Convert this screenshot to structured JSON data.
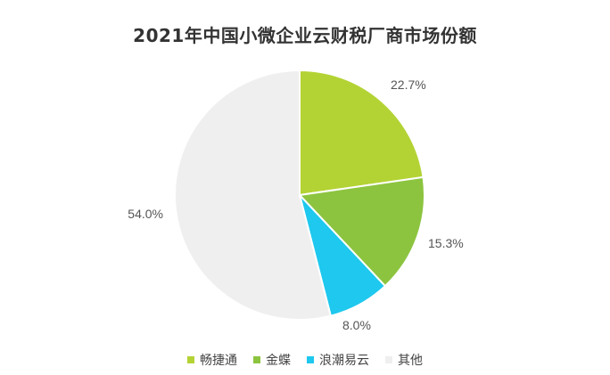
{
  "chart_data": {
    "type": "pie",
    "title": "2021年中国小微企业云财税厂商市场份额",
    "labels": [
      "畅捷通",
      "金蝶",
      "浪潮易云",
      "其他"
    ],
    "values": [
      22.7,
      15.3,
      8.0,
      54.0
    ],
    "value_labels": [
      "22.7%",
      "15.3%",
      "8.0%",
      "54.0%"
    ],
    "colors": [
      "#b3d334",
      "#8cc43f",
      "#1ec8ee",
      "#efefef"
    ],
    "start_angle": "12 o'clock",
    "direction": "clockwise",
    "legend_placement": "bottom"
  }
}
